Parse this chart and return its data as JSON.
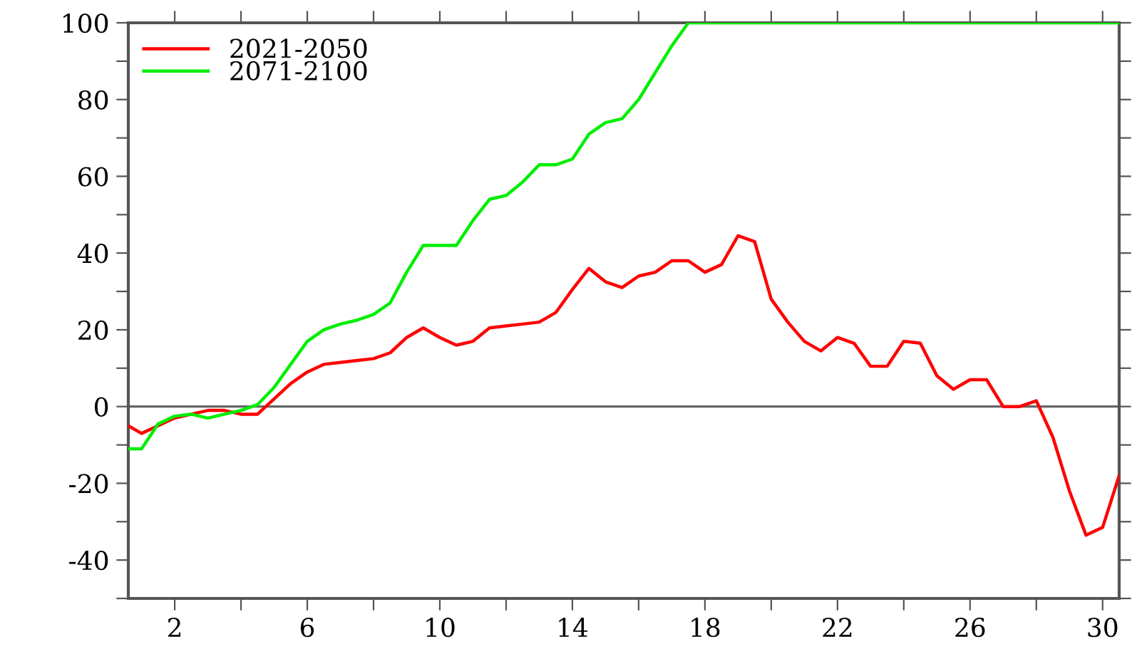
{
  "chart_data": {
    "type": "line",
    "x": [
      0.6,
      1.0,
      1.5,
      2,
      2.5,
      3,
      3.5,
      4,
      4.5,
      5,
      5.5,
      6,
      6.5,
      7,
      7.5,
      8,
      8.5,
      9,
      9.5,
      10,
      10.5,
      11,
      11.5,
      12,
      12.5,
      13,
      13.5,
      14,
      14.5,
      15,
      15.5,
      16,
      16.5,
      17,
      17.5,
      18,
      18.5,
      19,
      19.5,
      20,
      20.5,
      21,
      21.5,
      22,
      22.5,
      23,
      23.5,
      24,
      24.5,
      25,
      25.5,
      26,
      26.5,
      27,
      27.5,
      28,
      28.5,
      29,
      29.5,
      30,
      30.5
    ],
    "series": [
      {
        "name": "2021-2050",
        "color": "#ff0000",
        "values": [
          -5,
          -7,
          -5,
          -3,
          -2,
          -1,
          -1,
          -2,
          -2,
          2,
          6,
          9,
          11,
          11.5,
          12,
          12.5,
          14,
          18,
          20.5,
          18,
          16,
          17,
          20.5,
          21,
          21.5,
          22,
          24.5,
          30.5,
          36,
          32.5,
          31,
          34,
          35,
          38,
          38,
          35,
          37,
          44.5,
          43,
          28,
          22,
          17,
          14.5,
          18,
          16.5,
          10.5,
          10.5,
          17,
          16.5,
          8,
          4.5,
          7,
          7,
          0,
          0,
          1.5,
          -8,
          -22,
          -33.5,
          -31.5,
          -18
        ]
      },
      {
        "name": "2071-2100",
        "color": "#00ee00",
        "values": [
          -11,
          -11,
          -4.5,
          -2.5,
          -2,
          -3,
          -2,
          -1,
          0.5,
          5,
          11,
          17,
          20,
          21.5,
          22.5,
          24,
          27,
          35,
          42,
          42,
          42,
          48.5,
          54,
          55,
          58.5,
          63,
          63,
          64.5,
          71,
          74,
          75,
          80,
          87,
          94,
          100,
          100,
          100,
          100,
          100,
          100,
          100,
          100,
          100,
          100,
          100,
          100,
          100,
          100,
          100,
          100,
          100,
          100,
          100,
          100,
          100,
          100,
          100,
          100,
          100,
          100,
          100
        ]
      }
    ],
    "xlim": [
      0.6,
      30.5
    ],
    "xticks": [
      2,
      {
        "value": 4,
        "label": null
      },
      6,
      {
        "value": 8,
        "label": null
      },
      10,
      {
        "value": 12,
        "label": null
      },
      14,
      {
        "value": 16,
        "label": null
      },
      18,
      {
        "value": 20,
        "label": null
      },
      22,
      {
        "value": 24,
        "label": null
      },
      26,
      {
        "value": 28,
        "label": null
      },
      30
    ],
    "ylim": [
      -50,
      100
    ],
    "yticks": [
      {
        "value": -50,
        "label": null
      },
      -40,
      {
        "value": -30,
        "label": null
      },
      -20,
      {
        "value": -10,
        "label": null
      },
      0,
      {
        "value": 10,
        "label": null
      },
      20,
      {
        "value": 30,
        "label": null
      },
      40,
      {
        "value": 50,
        "label": null
      },
      60,
      {
        "value": 70,
        "label": null
      },
      80,
      {
        "value": 90,
        "label": null
      },
      100
    ],
    "ref_lines": [
      {
        "axis": "y",
        "value": 0,
        "color": "#666666"
      }
    ],
    "grid": false,
    "legend": "top left",
    "line_style": "solid",
    "marker": "none"
  }
}
